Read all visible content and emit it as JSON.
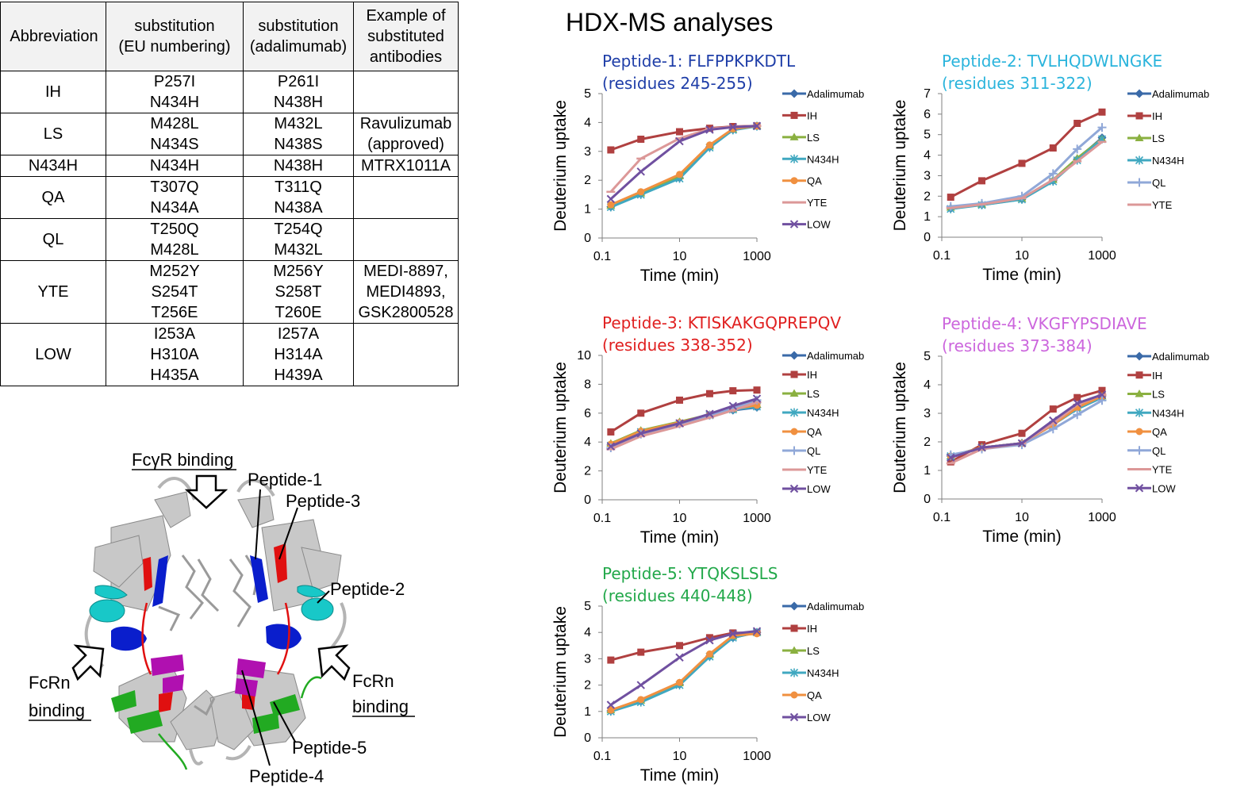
{
  "table": {
    "headers": [
      "Abbreviation",
      "substitution (EU numbering)",
      "substitution (adalimumab)",
      "Example of substituted antibodies"
    ],
    "header_lines": [
      [
        "Abbreviation"
      ],
      [
        "substitution",
        "(EU numbering)"
      ],
      [
        "substitution",
        "(adalimumab)"
      ],
      [
        "Example of",
        "substituted",
        "antibodies"
      ]
    ],
    "rows": [
      {
        "abbr": "IH",
        "eu": [
          "P257I",
          "N434H"
        ],
        "ada": [
          "P261I",
          "N438H"
        ],
        "examples": []
      },
      {
        "abbr": "LS",
        "eu": [
          "M428L",
          "N434S"
        ],
        "ada": [
          "M432L",
          "N438S"
        ],
        "examples": [
          "Ravulizumab",
          "(approved)"
        ]
      },
      {
        "abbr": "N434H",
        "eu": [
          "N434H"
        ],
        "ada": [
          "N438H"
        ],
        "examples": [
          "MTRX1011A"
        ]
      },
      {
        "abbr": "QA",
        "eu": [
          "T307Q",
          "N434A"
        ],
        "ada": [
          "T311Q",
          "N438A"
        ],
        "examples": []
      },
      {
        "abbr": "QL",
        "eu": [
          "T250Q",
          "M428L"
        ],
        "ada": [
          "T254Q",
          "M432L"
        ],
        "examples": []
      },
      {
        "abbr": "YTE",
        "eu": [
          "M252Y",
          "S254T",
          "T256E"
        ],
        "ada": [
          "M256Y",
          "S258T",
          "T260E"
        ],
        "examples": [
          "MEDI-8897,",
          "MEDI4893,",
          "GSK2800528"
        ]
      },
      {
        "abbr": "LOW",
        "eu": [
          "I253A",
          "H310A",
          "H435A"
        ],
        "ada": [
          "I257A",
          "H314A",
          "H439A"
        ],
        "examples": []
      }
    ]
  },
  "structure": {
    "labels": {
      "fcgr": "FcγR binding",
      "p1": "Peptide-1",
      "p3": "Peptide-3",
      "p2": "Peptide-2",
      "fcrn_l1": "FcRn",
      "fcrn_l2": "binding",
      "fcrn_r1": "FcRn",
      "fcrn_r2": "binding",
      "p5": "Peptide-5",
      "p4": "Peptide-4"
    },
    "colors": {
      "peptide1": "#0a1ecc",
      "peptide2": "#18c8c8",
      "peptide3": "#e01010",
      "peptide4": "#b010b0",
      "peptide5": "#22aa22",
      "backbone": "#c8c8c8"
    }
  },
  "heading": "HDX-MS analyses",
  "series_styles": {
    "Adalimumab": {
      "color": "#3a6aa8",
      "marker": "diamond"
    },
    "IH": {
      "color": "#b04040",
      "marker": "square"
    },
    "LS": {
      "color": "#8ab040",
      "marker": "triangle"
    },
    "N434H": {
      "color": "#40a8c0",
      "marker": "asterisk"
    },
    "QA": {
      "color": "#f09040",
      "marker": "circle"
    },
    "QL": {
      "color": "#90a8d8",
      "marker": "plus"
    },
    "YTE": {
      "color": "#dc9898",
      "marker": "dash"
    },
    "LOW": {
      "color": "#7050a0",
      "marker": "x"
    }
  },
  "chart_data": [
    {
      "type": "line",
      "title_line1": "Peptide-1: FLFPPKPKDTL",
      "title_line2": "(residues 245-255)",
      "title_color": "#1f3ea8",
      "xlabel": "Time (min)",
      "ylabel": "Deuterium uptake",
      "xscale": "log",
      "xlim": [
        0.1,
        1000
      ],
      "ylim": [
        0,
        5
      ],
      "xticks": [
        0.1,
        10,
        1000
      ],
      "xtick_labels": [
        "0.1",
        "10",
        "1000"
      ],
      "yticks": [
        0,
        1,
        2,
        3,
        4,
        5
      ],
      "grid": false,
      "legend": "right",
      "x": [
        0.167,
        1,
        10,
        60,
        240,
        1000
      ],
      "series": [
        {
          "name": "Adalimumab",
          "values": [
            1.08,
            1.52,
            2.08,
            3.15,
            3.75,
            3.88
          ]
        },
        {
          "name": "IH",
          "values": [
            3.05,
            3.42,
            3.68,
            3.8,
            3.86,
            3.88
          ]
        },
        {
          "name": "LS",
          "values": [
            1.12,
            1.55,
            2.15,
            3.18,
            3.76,
            3.88
          ]
        },
        {
          "name": "N434H",
          "values": [
            1.07,
            1.5,
            2.06,
            3.13,
            3.74,
            3.87
          ]
        },
        {
          "name": "QA",
          "values": [
            1.15,
            1.6,
            2.2,
            3.22,
            3.78,
            3.88
          ]
        },
        {
          "name": "YTE",
          "values": [
            1.6,
            2.75,
            3.45,
            3.78,
            3.85,
            3.88
          ]
        },
        {
          "name": "LOW",
          "values": [
            1.35,
            2.3,
            3.35,
            3.75,
            3.84,
            3.88
          ]
        }
      ]
    },
    {
      "type": "line",
      "title_line1": "Peptide-2: TVLHQDWLNGKE",
      "title_line2": "(residues 311-322)",
      "title_color": "#2ab4dc",
      "xlabel": "Time (min)",
      "ylabel": "Deuterium uptake",
      "xscale": "log",
      "xlim": [
        0.1,
        1000
      ],
      "ylim": [
        0,
        7
      ],
      "xticks": [
        0.1,
        10,
        1000
      ],
      "xtick_labels": [
        "0.1",
        "10",
        "1000"
      ],
      "yticks": [
        0,
        1,
        2,
        3,
        4,
        5,
        6,
        7
      ],
      "grid": false,
      "legend": "right",
      "x": [
        0.167,
        1,
        10,
        60,
        240,
        1000
      ],
      "series": [
        {
          "name": "Adalimumab",
          "values": [
            1.4,
            1.58,
            1.85,
            2.75,
            3.8,
            4.85
          ]
        },
        {
          "name": "IH",
          "values": [
            1.95,
            2.75,
            3.6,
            4.35,
            5.55,
            6.1
          ]
        },
        {
          "name": "LS",
          "values": [
            1.45,
            1.6,
            1.88,
            2.8,
            3.85,
            4.8
          ]
        },
        {
          "name": "N434H",
          "values": [
            1.38,
            1.57,
            1.84,
            2.72,
            3.75,
            4.78
          ]
        },
        {
          "name": "QL",
          "values": [
            1.5,
            1.65,
            2.0,
            3.1,
            4.3,
            5.35
          ]
        },
        {
          "name": "YTE",
          "values": [
            1.42,
            1.6,
            1.9,
            2.8,
            3.7,
            4.65
          ]
        }
      ]
    },
    {
      "type": "line",
      "title_line1": "Peptide-3: KTISKAKGQPREPQV",
      "title_line2": "(residues 338-352)",
      "title_color": "#e02020",
      "xlabel": "Time (min)",
      "ylabel": "Deuterium uptake",
      "xscale": "log",
      "xlim": [
        0.1,
        1000
      ],
      "ylim": [
        0,
        10
      ],
      "xticks": [
        0.1,
        10,
        1000
      ],
      "xtick_labels": [
        "0.1",
        "10",
        "1000"
      ],
      "yticks": [
        0,
        2,
        4,
        6,
        8,
        10
      ],
      "grid": false,
      "legend": "right",
      "x": [
        0.167,
        1,
        10,
        60,
        240,
        1000
      ],
      "series": [
        {
          "name": "Adalimumab",
          "values": [
            3.8,
            4.75,
            5.35,
            5.85,
            6.2,
            6.4
          ]
        },
        {
          "name": "IH",
          "values": [
            4.7,
            6.0,
            6.9,
            7.35,
            7.55,
            7.6
          ]
        },
        {
          "name": "LS",
          "values": [
            3.9,
            4.8,
            5.4,
            5.9,
            6.3,
            6.6
          ]
        },
        {
          "name": "N434H",
          "values": [
            3.75,
            4.7,
            5.3,
            5.85,
            6.25,
            6.45
          ]
        },
        {
          "name": "QA",
          "values": [
            3.85,
            4.75,
            5.35,
            5.9,
            6.3,
            6.55
          ]
        },
        {
          "name": "QL",
          "values": [
            3.6,
            4.55,
            5.25,
            5.85,
            6.35,
            6.9
          ]
        },
        {
          "name": "YTE",
          "values": [
            3.5,
            4.4,
            5.1,
            5.7,
            6.2,
            6.75
          ]
        },
        {
          "name": "LOW",
          "values": [
            3.7,
            4.6,
            5.3,
            5.95,
            6.5,
            7.0
          ]
        }
      ]
    },
    {
      "type": "line",
      "title_line1": "Peptide-4: VKGFYPSDIAVE",
      "title_line2": "(residues 373-384)",
      "title_color": "#cc66dd",
      "xlabel": "Time (min)",
      "ylabel": "Deuterium uptake",
      "xscale": "log",
      "xlim": [
        0.1,
        1000
      ],
      "ylim": [
        0,
        5
      ],
      "xticks": [
        0.1,
        10,
        1000
      ],
      "xtick_labels": [
        "0.1",
        "10",
        "1000"
      ],
      "yticks": [
        0,
        1,
        2,
        3,
        4,
        5
      ],
      "grid": false,
      "legend": "right",
      "x": [
        0.167,
        1,
        10,
        60,
        240,
        1000
      ],
      "series": [
        {
          "name": "Adalimumab",
          "values": [
            1.5,
            1.8,
            1.95,
            2.65,
            3.2,
            3.6
          ]
        },
        {
          "name": "IH",
          "values": [
            1.3,
            1.9,
            2.3,
            3.15,
            3.55,
            3.8
          ]
        },
        {
          "name": "LS",
          "values": [
            1.5,
            1.8,
            1.95,
            2.6,
            3.2,
            3.6
          ]
        },
        {
          "name": "N434H",
          "values": [
            1.5,
            1.8,
            1.95,
            2.6,
            3.15,
            3.55
          ]
        },
        {
          "name": "QA",
          "values": [
            1.5,
            1.8,
            1.95,
            2.6,
            3.2,
            3.6
          ]
        },
        {
          "name": "QL",
          "values": [
            1.55,
            1.75,
            1.9,
            2.45,
            2.95,
            3.45
          ]
        },
        {
          "name": "YTE",
          "values": [
            1.25,
            1.75,
            1.95,
            2.65,
            3.3,
            3.65
          ]
        },
        {
          "name": "LOW",
          "values": [
            1.45,
            1.8,
            1.95,
            2.75,
            3.35,
            3.65
          ]
        }
      ]
    },
    {
      "type": "line",
      "title_line1": "Peptide-5: YTQKSLSLS",
      "title_line2": "(residues 440-448)",
      "title_color": "#22a84a",
      "xlabel": "Time (min)",
      "ylabel": "Deuterium uptake",
      "xscale": "log",
      "xlim": [
        0.1,
        1000
      ],
      "ylim": [
        0,
        5
      ],
      "xticks": [
        0.1,
        10,
        1000
      ],
      "xtick_labels": [
        "0.1",
        "10",
        "1000"
      ],
      "yticks": [
        0,
        1,
        2,
        3,
        4,
        5
      ],
      "grid": false,
      "legend": "right",
      "x": [
        0.167,
        1,
        10,
        60,
        240,
        1000
      ],
      "series": [
        {
          "name": "Adalimumab",
          "values": [
            1.02,
            1.38,
            2.02,
            3.1,
            3.8,
            4.0
          ]
        },
        {
          "name": "IH",
          "values": [
            2.95,
            3.25,
            3.5,
            3.8,
            3.98,
            4.0
          ]
        },
        {
          "name": "LS",
          "values": [
            1.05,
            1.42,
            2.08,
            3.15,
            3.85,
            4.0
          ]
        },
        {
          "name": "N434H",
          "values": [
            1.0,
            1.35,
            2.0,
            3.08,
            3.8,
            4.0
          ]
        },
        {
          "name": "QA",
          "values": [
            1.05,
            1.45,
            2.1,
            3.18,
            3.88,
            3.95
          ]
        },
        {
          "name": "LOW",
          "values": [
            1.25,
            2.0,
            3.05,
            3.7,
            3.95,
            4.05
          ]
        }
      ]
    }
  ]
}
